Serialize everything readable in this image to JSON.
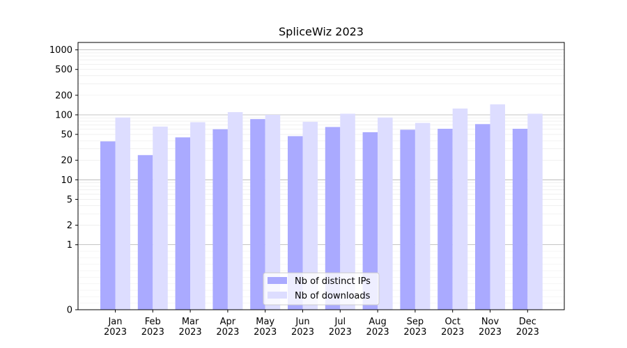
{
  "chart_data": {
    "type": "bar",
    "title": "SpliceWiz 2023",
    "xlabel": "",
    "ylabel": "",
    "y_scale": "symlog",
    "ylim": [
      0,
      1300
    ],
    "y_ticks": [
      0,
      1,
      2,
      5,
      10,
      20,
      50,
      100,
      200,
      500,
      1000
    ],
    "y_tick_labels": [
      "0",
      "1",
      "2",
      "5",
      "10",
      "20",
      "50",
      "100",
      "200",
      "500",
      "1000"
    ],
    "categories": [
      "Jan\n2023",
      "Feb\n2023",
      "Mar\n2023",
      "Apr\n2023",
      "May\n2023",
      "Jun\n2023",
      "Jul\n2023",
      "Aug\n2023",
      "Sep\n2023",
      "Oct\n2023",
      "Nov\n2023",
      "Dec\n2023"
    ],
    "category_lines": [
      [
        "Jan",
        "2023"
      ],
      [
        "Feb",
        "2023"
      ],
      [
        "Mar",
        "2023"
      ],
      [
        "Apr",
        "2023"
      ],
      [
        "May",
        "2023"
      ],
      [
        "Jun",
        "2023"
      ],
      [
        "Jul",
        "2023"
      ],
      [
        "Aug",
        "2023"
      ],
      [
        "Sep",
        "2023"
      ],
      [
        "Oct",
        "2023"
      ],
      [
        "Nov",
        "2023"
      ],
      [
        "Dec",
        "2023"
      ]
    ],
    "series": [
      {
        "name": "Nb of distinct IPs",
        "color": "#aaaaff",
        "values": [
          39,
          24,
          45,
          60,
          86,
          47,
          65,
          54,
          59,
          61,
          72,
          61
        ]
      },
      {
        "name": "Nb of downloads",
        "color": "#ddddff",
        "values": [
          91,
          66,
          77,
          110,
          100,
          78,
          104,
          91,
          75,
          125,
          145,
          104
        ]
      }
    ],
    "grid": true,
    "legend_position": "lower-center"
  }
}
